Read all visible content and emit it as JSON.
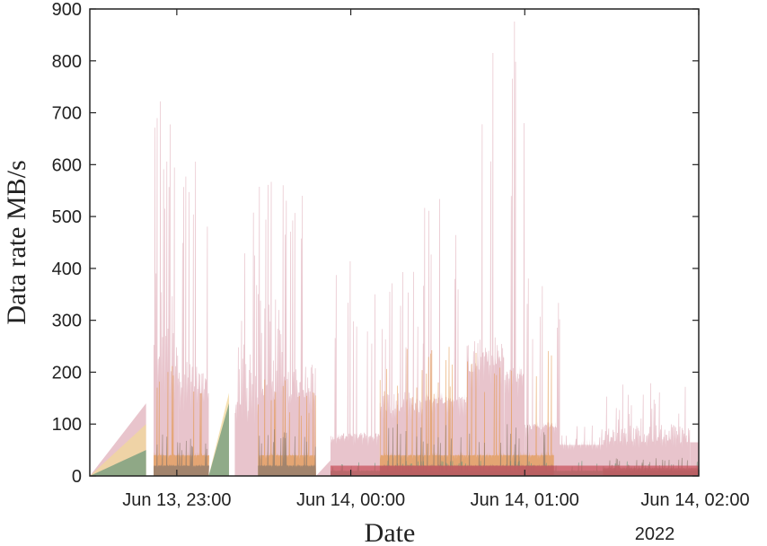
{
  "chart_data": {
    "type": "area",
    "title": "",
    "xlabel": "Date",
    "ylabel": "Data rate MB/s",
    "x_year_label": "2022",
    "ylim": [
      0,
      900
    ],
    "yticks": [
      "0",
      "100",
      "200",
      "300",
      "400",
      "500",
      "600",
      "700",
      "800",
      "900"
    ],
    "xticks": [
      {
        "t": 30,
        "label": "Jun 13, 23:00"
      },
      {
        "t": 90,
        "label": "Jun 14, 00:00"
      },
      {
        "t": 150,
        "label": "Jun 14, 01:00"
      },
      {
        "t": 210,
        "label": "Jun 14, 02:00"
      }
    ],
    "x_unit": "minutes after 2022-06-13 22:30",
    "xlim": [
      0,
      210
    ],
    "grid": false,
    "legend": "none",
    "colors": {
      "total": "#e8c4cc",
      "orange": "#e39b55",
      "yellow": "#f2d89a",
      "green": "#6f9a7c",
      "brown": "#8c7a6b",
      "red": "#c9545f"
    },
    "series": [
      {
        "name": "",
        "color_key": "total",
        "segments": [
          {
            "x": [
              0,
              19.4
            ],
            "y": [
              0,
              140
            ],
            "kind": "ramp"
          },
          {
            "x": [
              22,
              30.4
            ],
            "y": [
              350,
              770
            ],
            "kind": "burst",
            "base": 180
          },
          {
            "x": [
              30.4,
              41
            ],
            "y": [
              200,
              660
            ],
            "kind": "burst",
            "base": 150
          },
          {
            "x": [
              50,
              58
            ],
            "y": [
              250,
              600
            ],
            "kind": "burst",
            "base": 120
          },
          {
            "x": [
              58,
              68
            ],
            "y": [
              300,
              610
            ],
            "kind": "burst",
            "base": 150
          },
          {
            "x": [
              68,
              78
            ],
            "y": [
              200,
              590
            ],
            "kind": "burst",
            "base": 150
          },
          {
            "x": [
              78,
              83
            ],
            "y": [
              0,
              30
            ],
            "kind": "ramp"
          },
          {
            "x": [
              83,
              100
            ],
            "y": [
              80,
              420
            ],
            "kind": "burst",
            "base": 70
          },
          {
            "x": [
              100,
              115
            ],
            "y": [
              150,
              410
            ],
            "kind": "burst",
            "base": 120
          },
          {
            "x": [
              115,
              130
            ],
            "y": [
              150,
              570
            ],
            "kind": "burst",
            "base": 140
          },
          {
            "x": [
              130,
              143
            ],
            "y": [
              250,
              890
            ],
            "kind": "burst",
            "base": 200
          },
          {
            "x": [
              143,
              150
            ],
            "y": [
              200,
              890
            ],
            "kind": "burst",
            "base": 180
          },
          {
            "x": [
              150,
              162
            ],
            "y": [
              100,
              390
            ],
            "kind": "burst",
            "base": 90
          },
          {
            "x": [
              162,
              177
            ],
            "y": [
              60,
              100
            ],
            "kind": "burst",
            "base": 60
          },
          {
            "x": [
              177,
              207
            ],
            "y": [
              90,
              180
            ],
            "kind": "burst",
            "base": 65
          },
          {
            "x": [
              207,
              210
            ],
            "y": [
              60,
              65
            ],
            "kind": "flat"
          }
        ]
      },
      {
        "name": "",
        "color_key": "orange",
        "segments": [
          {
            "x": [
              22,
              41
            ],
            "y": [
              40,
              220
            ],
            "kind": "burst",
            "base": 40
          },
          {
            "x": [
              58,
              78
            ],
            "y": [
              40,
              190
            ],
            "kind": "burst",
            "base": 40
          },
          {
            "x": [
              100,
              160
            ],
            "y": [
              40,
              250
            ],
            "kind": "burst",
            "base": 40
          }
        ]
      },
      {
        "name": "",
        "color_key": "yellow",
        "segments": [
          {
            "x": [
              0,
              19.4
            ],
            "y": [
              0,
              100
            ],
            "kind": "ramp"
          },
          {
            "x": [
              41,
              48
            ],
            "y": [
              0,
              160
            ],
            "kind": "ramp"
          }
        ]
      },
      {
        "name": "",
        "color_key": "green",
        "segments": [
          {
            "x": [
              0,
              19.4
            ],
            "y": [
              0,
              50
            ],
            "kind": "ramp"
          },
          {
            "x": [
              41,
              48
            ],
            "y": [
              0,
              140
            ],
            "kind": "ramp"
          },
          {
            "x": [
              83,
              210
            ],
            "y": [
              10,
              30
            ],
            "kind": "burst",
            "base": 10
          }
        ]
      },
      {
        "name": "",
        "color_key": "brown",
        "segments": [
          {
            "x": [
              22,
              41
            ],
            "y": [
              20,
              80
            ],
            "kind": "burst",
            "base": 20
          },
          {
            "x": [
              58,
              78
            ],
            "y": [
              20,
              90
            ],
            "kind": "burst",
            "base": 20
          },
          {
            "x": [
              100,
              160
            ],
            "y": [
              20,
              100
            ],
            "kind": "burst",
            "base": 20
          },
          {
            "x": [
              177,
              210
            ],
            "y": [
              15,
              35
            ],
            "kind": "burst",
            "base": 15
          }
        ]
      },
      {
        "name": "",
        "color_key": "red",
        "segments": [
          {
            "x": [
              83,
              210
            ],
            "y": [
              10,
              20
            ],
            "kind": "flat"
          }
        ]
      }
    ]
  }
}
